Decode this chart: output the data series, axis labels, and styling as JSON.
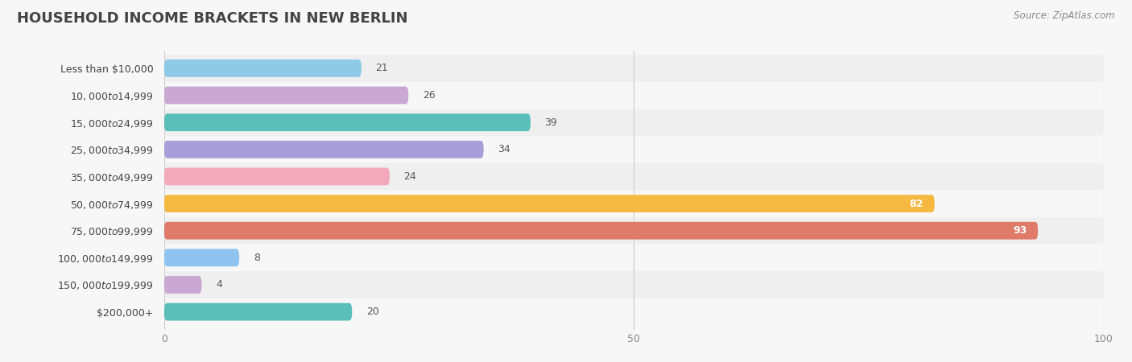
{
  "title": "HOUSEHOLD INCOME BRACKETS IN NEW BERLIN",
  "source": "Source: ZipAtlas.com",
  "categories": [
    "Less than $10,000",
    "$10,000 to $14,999",
    "$15,000 to $24,999",
    "$25,000 to $34,999",
    "$35,000 to $49,999",
    "$50,000 to $74,999",
    "$75,000 to $99,999",
    "$100,000 to $149,999",
    "$150,000 to $199,999",
    "$200,000+"
  ],
  "values": [
    21,
    26,
    39,
    34,
    24,
    82,
    93,
    8,
    4,
    20
  ],
  "bar_colors": [
    "#8ecae6",
    "#c9a8d4",
    "#5abfb8",
    "#a89fd8",
    "#f4a8bc",
    "#f5b942",
    "#e07b6a",
    "#90c4f0",
    "#c9a8d4",
    "#5abfb8"
  ],
  "background_color": "#f7f7f7",
  "row_bg_even": "#efefef",
  "row_bg_odd": "#f7f7f7",
  "xlim": [
    0,
    100
  ],
  "xticks": [
    0,
    50,
    100
  ],
  "bar_height": 0.65,
  "value_label_threshold": 60,
  "title_fontsize": 13,
  "label_fontsize": 9,
  "value_fontsize": 9
}
